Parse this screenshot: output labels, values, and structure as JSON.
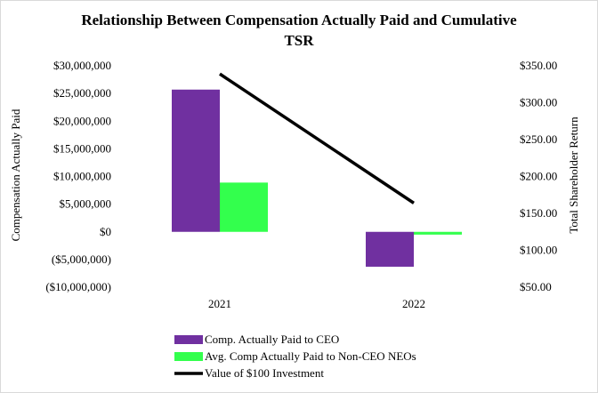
{
  "chart_data": {
    "type": "bar",
    "title_line1": "Relationship Between Compensation Actually Paid and Cumulative",
    "title_line2": "TSR",
    "categories": [
      "2021",
      "2022"
    ],
    "ylabel": "Compensation Actually Paid",
    "y2label": "Total Shareholder Return",
    "ylim": [
      -10000000,
      30000000
    ],
    "y2lim": [
      50,
      350
    ],
    "y_ticks": [
      {
        "value": 30000000,
        "label": "$30,000,000"
      },
      {
        "value": 25000000,
        "label": "$25,000,000"
      },
      {
        "value": 20000000,
        "label": "$20,000,000"
      },
      {
        "value": 15000000,
        "label": "$15,000,000"
      },
      {
        "value": 10000000,
        "label": "$10,000,000"
      },
      {
        "value": 5000000,
        "label": "$5,000,000"
      },
      {
        "value": 0,
        "label": "$0"
      },
      {
        "value": -5000000,
        "label": "($5,000,000)"
      },
      {
        "value": -10000000,
        "label": "($10,000,000)"
      }
    ],
    "y2_ticks": [
      {
        "value": 350,
        "label": "$350.00"
      },
      {
        "value": 300,
        "label": "$300.00"
      },
      {
        "value": 250,
        "label": "$250.00"
      },
      {
        "value": 200,
        "label": "$200.00"
      },
      {
        "value": 150,
        "label": "$150.00"
      },
      {
        "value": 100,
        "label": "$100.00"
      },
      {
        "value": 50,
        "label": "$50.00"
      }
    ],
    "series": [
      {
        "name": "Comp. Actually Paid to CEO",
        "kind": "bar",
        "axis": "left",
        "color": "#7030a0",
        "values": [
          25700000,
          -6300000
        ]
      },
      {
        "name": "Avg. Comp Actually Paid to Non-CEO NEOs",
        "kind": "bar",
        "axis": "left",
        "color": "#33ff4d",
        "values": [
          8900000,
          -500000
        ]
      },
      {
        "name": "Value of $100 Investment",
        "kind": "line",
        "axis": "right",
        "color": "#000000",
        "values": [
          339,
          164
        ]
      }
    ],
    "legend_position": "bottom",
    "grid": false
  }
}
